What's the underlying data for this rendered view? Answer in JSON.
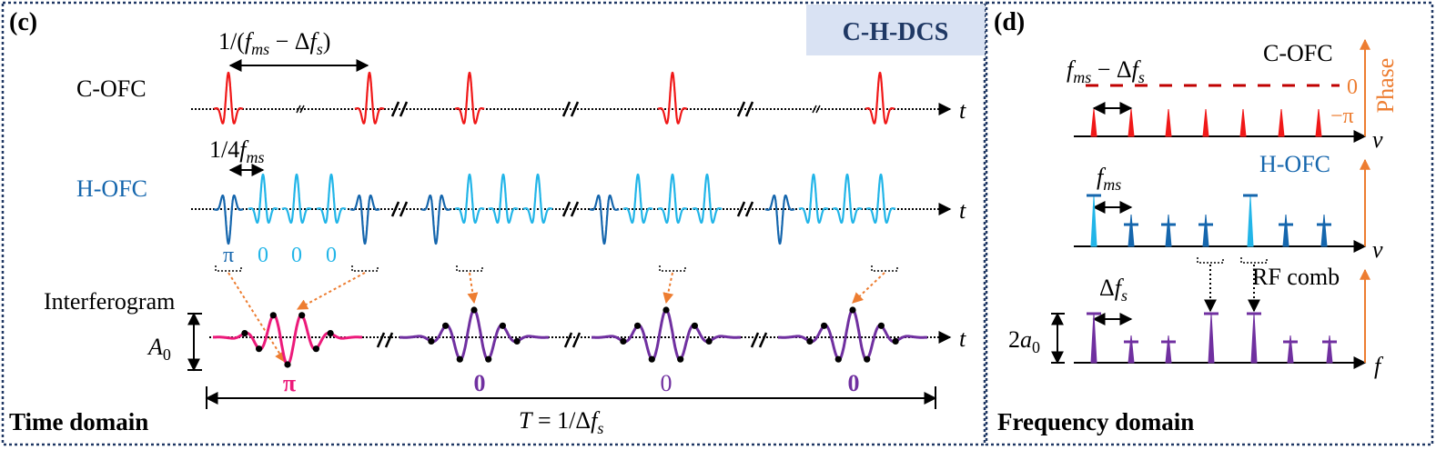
{
  "panel_c": {
    "label": "(c)",
    "badge": "C-H-DCS",
    "period_label": "1/(f_ms − Δf_s)",
    "period_parts": [
      "1/(",
      "f",
      "ms",
      " − Δ",
      "f",
      "s",
      ")"
    ],
    "c_ofc_label": "C-OFC",
    "h_ofc_label": "H-OFC",
    "interferogram_label": "Interferogram",
    "quarter_label_parts": [
      "1/4",
      "f",
      "ms"
    ],
    "amp_label_parts": [
      "A",
      "0"
    ],
    "time_axis": "t",
    "h_phases": [
      "π",
      "0",
      "0",
      "0"
    ],
    "interferogram_phases": [
      "π",
      "0",
      "0",
      "0"
    ],
    "total_period_parts": [
      "T",
      " = 1/Δ",
      "f",
      "s"
    ],
    "footer": "Time domain",
    "colors": {
      "c_pulse": "#f01818",
      "h_dark": "#1566ad",
      "h_light": "#22b5e8",
      "pink": "#ec1a7a",
      "purple": "#7030a0",
      "orange": "#ed7d31",
      "frame": "#203864"
    }
  },
  "panel_d": {
    "label": "(d)",
    "c_ofc_label": "C-OFC",
    "h_ofc_label": "H-OFC",
    "rf_label": "RF comb",
    "phase_label": "Phase",
    "phase_zero": "0",
    "phase_minus_pi": "−π",
    "spacing_label_parts": [
      "f",
      "ms",
      " − Δ",
      "f",
      "s"
    ],
    "fms_label_parts": [
      "f",
      "ms"
    ],
    "dfs_label_parts": [
      "Δ",
      "f",
      "s"
    ],
    "amp_label_parts": [
      "2",
      "a",
      "0"
    ],
    "nu_axis": "ν",
    "f_axis": "f",
    "footer": "Frequency domain"
  }
}
